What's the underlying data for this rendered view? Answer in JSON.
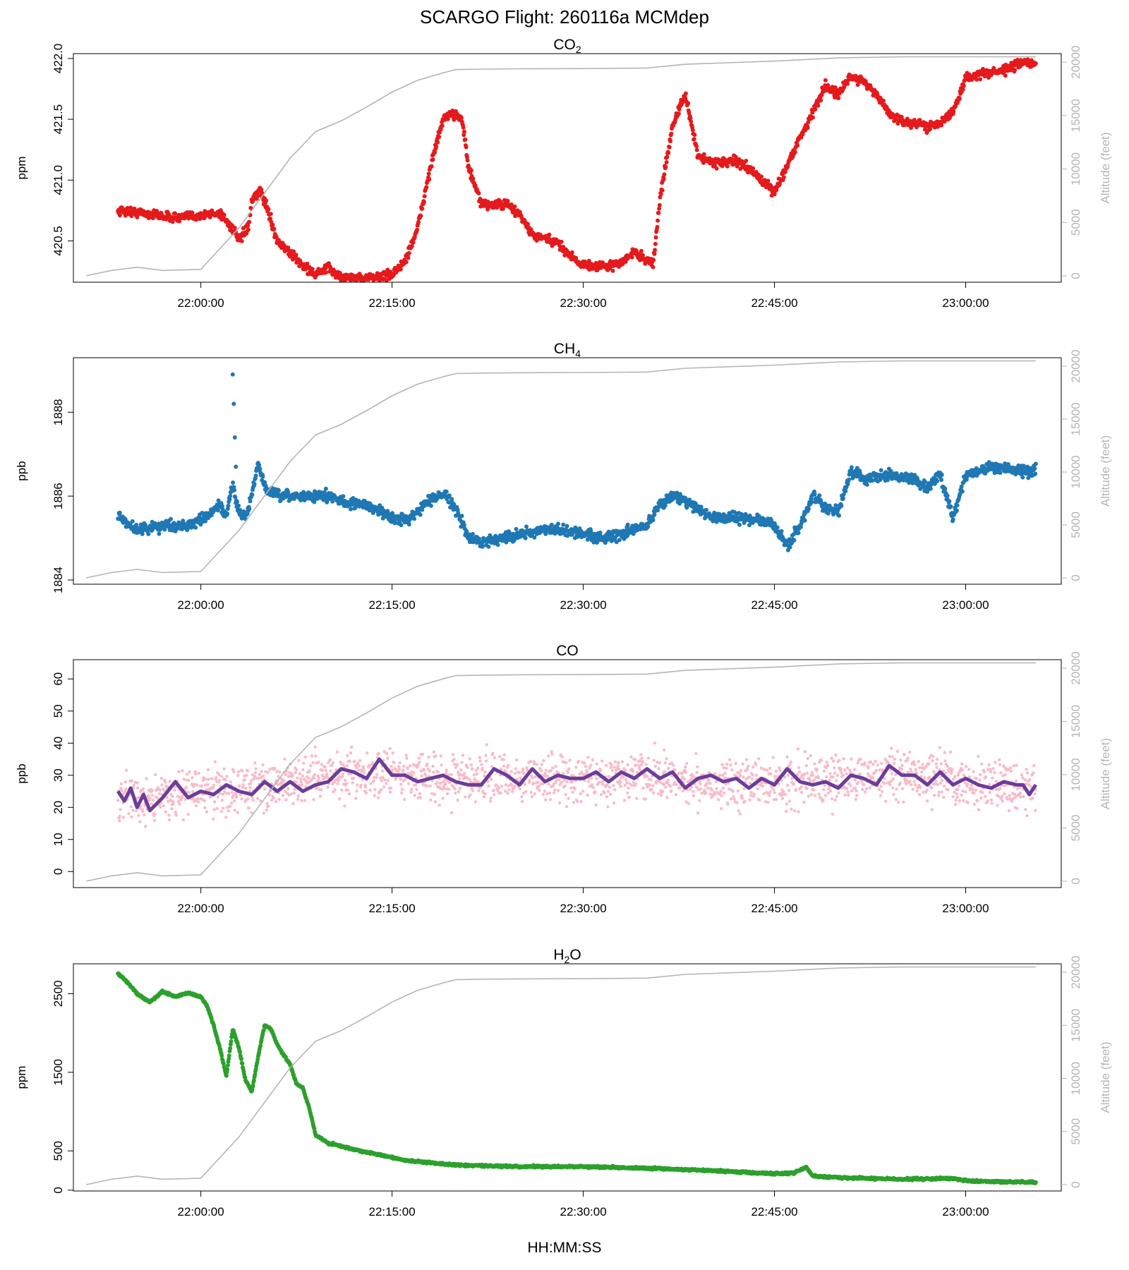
{
  "page_title": "SCARGO Flight: 260116a  MCMdep",
  "common_xlabel": "HH:MM:SS",
  "colors": {
    "altitude": "#b5b5b5",
    "axis": "#000000",
    "co2": "#e41a1c",
    "ch4": "#1f78b4",
    "co_raw": "#f8bcc8",
    "co_smooth": "#6a3d9a",
    "h2o": "#2ca02c"
  },
  "chart_data": [
    {
      "type": "scatter",
      "title": "CO2",
      "title_main": "CO",
      "title_sub": "2",
      "ylabel": "ppm",
      "ylabel2": "Altitude (feet)",
      "xlim": [
        "21:50:00",
        "23:07:30"
      ],
      "xticks": [
        "22:00:00",
        "22:15:00",
        "22:30:00",
        "22:45:00",
        "23:00:00"
      ],
      "ylim": [
        420.16,
        422.04
      ],
      "yticks": [
        "420.5",
        "421.0",
        "421.5",
        "422.0"
      ],
      "y2lim": [
        -600,
        20800
      ],
      "y2ticks": [
        "0",
        "5000",
        "10000",
        "15000",
        "20000"
      ],
      "series": [
        {
          "kind": "points",
          "color": "co2",
          "noise": 0.035,
          "x": [
            "21:53:30",
            "21:56:00",
            "21:58:00",
            "22:00:00",
            "22:01:30",
            "22:02:30",
            "22:03:00",
            "22:03:45",
            "22:04:00",
            "22:04:40",
            "22:05:10",
            "22:06:00",
            "22:08:00",
            "22:09:00",
            "22:10:00",
            "22:11:00",
            "22:13:00",
            "22:15:00",
            "22:16:00",
            "22:17:00",
            "22:18:00",
            "22:19:00",
            "22:20:00",
            "22:20:30",
            "22:21:00",
            "22:22:00",
            "22:24:00",
            "22:25:00",
            "22:26:00",
            "22:28:00",
            "22:29:00",
            "22:30:00",
            "22:32:00",
            "22:33:00",
            "22:34:00",
            "22:35:00",
            "22:35:30",
            "22:36:00",
            "22:37:00",
            "22:38:00",
            "22:39:00",
            "22:40:00",
            "22:42:00",
            "22:43:00",
            "22:44:00",
            "22:45:00",
            "22:46:00",
            "22:47:00",
            "22:48:00",
            "22:49:00",
            "22:50:00",
            "22:51:00",
            "22:52:00",
            "22:53:00",
            "22:54:00",
            "22:55:00",
            "22:56:00",
            "22:57:00",
            "22:58:00",
            "22:59:00",
            "23:00:00",
            "23:01:00",
            "23:03:00",
            "23:04:00",
            "23:05:00",
            "23:05:30"
          ],
          "y": [
            420.75,
            420.72,
            420.69,
            420.71,
            420.73,
            420.6,
            420.5,
            420.62,
            420.82,
            420.92,
            420.78,
            420.5,
            420.3,
            420.22,
            420.28,
            420.2,
            420.19,
            420.22,
            420.33,
            420.6,
            421.1,
            421.5,
            421.55,
            421.5,
            421.1,
            420.8,
            420.8,
            420.72,
            420.55,
            420.48,
            420.38,
            420.3,
            420.29,
            420.32,
            420.41,
            420.34,
            420.32,
            420.83,
            421.45,
            421.7,
            421.2,
            421.15,
            421.15,
            421.1,
            421.0,
            420.9,
            421.12,
            421.35,
            421.55,
            421.78,
            421.7,
            421.85,
            421.82,
            421.7,
            421.55,
            421.48,
            421.47,
            421.44,
            421.48,
            421.55,
            421.84,
            421.87,
            421.9,
            421.95,
            421.97,
            421.95
          ]
        },
        {
          "kind": "line",
          "color": "altitude",
          "axis": "right",
          "x": [
            "21:51:00",
            "21:53:00",
            "21:55:00",
            "21:57:00",
            "22:00:00",
            "22:03:00",
            "22:07:00",
            "22:09:00",
            "22:11:00",
            "22:13:00",
            "22:15:00",
            "22:17:00",
            "22:19:00",
            "22:20:00",
            "22:22:00",
            "22:25:00",
            "22:30:00",
            "22:35:00",
            "22:38:00",
            "22:45:00",
            "22:50:00",
            "22:55:00",
            "23:00:00",
            "23:05:30"
          ],
          "y": [
            0,
            500,
            800,
            500,
            600,
            4500,
            11000,
            13500,
            14500,
            15800,
            17200,
            18300,
            19000,
            19300,
            19350,
            19380,
            19400,
            19450,
            19800,
            20100,
            20400,
            20500,
            20500,
            20500
          ]
        }
      ]
    },
    {
      "type": "scatter",
      "title": "CH4",
      "title_main": "CH",
      "title_sub": "4",
      "ylabel": "ppb",
      "ylabel2": "Altitude (feet)",
      "xlim": [
        "21:50:00",
        "23:07:30"
      ],
      "xticks": [
        "22:00:00",
        "22:15:00",
        "22:30:00",
        "22:45:00",
        "23:00:00"
      ],
      "ylim": [
        1883.9,
        1889.3
      ],
      "yticks": [
        "1884",
        "1886",
        "1888"
      ],
      "y2lim": [
        -600,
        20800
      ],
      "y2ticks": [
        "0",
        "5000",
        "10000",
        "15000",
        "20000"
      ],
      "series": [
        {
          "kind": "points",
          "color": "ch4",
          "noise": 0.12,
          "x": [
            "21:53:30",
            "21:55:00",
            "21:57:00",
            "21:59:00",
            "22:00:30",
            "22:01:30",
            "22:02:00",
            "22:02:30",
            "22:03:00",
            "22:03:30",
            "22:04:00",
            "22:04:30",
            "22:05:00",
            "22:06:00",
            "22:08:00",
            "22:10:00",
            "22:12:00",
            "22:13:00",
            "22:15:00",
            "22:16:00",
            "22:18:00",
            "22:19:00",
            "22:20:00",
            "22:21:00",
            "22:22:00",
            "22:25:00",
            "22:28:00",
            "22:30:00",
            "22:32:00",
            "22:35:00",
            "22:36:00",
            "22:37:00",
            "22:38:00",
            "22:40:00",
            "22:42:00",
            "22:44:00",
            "22:45:00",
            "22:46:00",
            "22:47:00",
            "22:48:00",
            "22:49:00",
            "22:50:00",
            "22:51:00",
            "22:52:00",
            "22:54:00",
            "22:56:00",
            "22:57:00",
            "22:58:00",
            "22:59:00",
            "23:00:00",
            "23:02:00",
            "23:04:00",
            "23:05:30"
          ],
          "y": [
            1885.5,
            1885.2,
            1885.3,
            1885.3,
            1885.5,
            1885.8,
            1885.5,
            1886.3,
            1885.6,
            1885.5,
            1886.0,
            1886.8,
            1886.2,
            1886.0,
            1886.0,
            1886.0,
            1885.8,
            1885.8,
            1885.5,
            1885.4,
            1885.9,
            1886.1,
            1885.7,
            1885.0,
            1884.9,
            1885.1,
            1885.2,
            1885.1,
            1885.0,
            1885.3,
            1885.8,
            1886.0,
            1885.9,
            1885.5,
            1885.5,
            1885.4,
            1885.3,
            1884.8,
            1885.3,
            1886.0,
            1885.7,
            1885.6,
            1886.6,
            1886.4,
            1886.5,
            1886.4,
            1886.2,
            1886.5,
            1885.5,
            1886.5,
            1886.7,
            1886.6,
            1886.6
          ]
        },
        {
          "kind": "points",
          "color": "ch4",
          "noise": 0,
          "x": [
            "22:02:30",
            "22:02:35",
            "22:02:40",
            "22:02:45"
          ],
          "y": [
            1888.9,
            1888.2,
            1887.4,
            1886.7
          ]
        },
        {
          "kind": "line",
          "color": "altitude",
          "axis": "right",
          "x": [
            "21:51:00",
            "21:53:00",
            "21:55:00",
            "21:57:00",
            "22:00:00",
            "22:03:00",
            "22:07:00",
            "22:09:00",
            "22:11:00",
            "22:13:00",
            "22:15:00",
            "22:17:00",
            "22:19:00",
            "22:20:00",
            "22:22:00",
            "22:25:00",
            "22:30:00",
            "22:35:00",
            "22:38:00",
            "22:45:00",
            "22:50:00",
            "22:55:00",
            "23:00:00",
            "23:05:30"
          ],
          "y": [
            0,
            500,
            800,
            500,
            600,
            4500,
            11000,
            13500,
            14500,
            15800,
            17200,
            18300,
            19000,
            19300,
            19350,
            19380,
            19400,
            19450,
            19800,
            20100,
            20400,
            20500,
            20500,
            20500
          ]
        }
      ]
    },
    {
      "type": "scatter",
      "title": "CO",
      "title_main": "CO",
      "title_sub": "",
      "ylabel": "ppb",
      "ylabel2": "Altitude (feet)",
      "xlim": [
        "21:50:00",
        "23:07:30"
      ],
      "xticks": [
        "22:00:00",
        "22:15:00",
        "22:30:00",
        "22:45:00",
        "23:00:00"
      ],
      "ylim": [
        -5,
        66
      ],
      "yticks": [
        "0",
        "10",
        "20",
        "30",
        "40",
        "50",
        "60"
      ],
      "y2lim": [
        -600,
        20800
      ],
      "y2ticks": [
        "0",
        "5000",
        "10000",
        "15000",
        "20000"
      ],
      "series": [
        {
          "kind": "points",
          "color": "co_raw",
          "noise": 7,
          "x": [
            "21:53:30",
            "21:58:00",
            "22:03:00",
            "22:08:00",
            "22:12:00",
            "22:16:00",
            "22:20:00",
            "22:25:00",
            "22:30:00",
            "22:35:00",
            "22:40:00",
            "22:45:00",
            "22:50:00",
            "22:55:00",
            "23:00:00",
            "23:05:30"
          ],
          "y": [
            23,
            24,
            26,
            28,
            31,
            30,
            29,
            29,
            29,
            29,
            28,
            28,
            29,
            30,
            28,
            26
          ]
        },
        {
          "kind": "line",
          "color": "co_smooth",
          "x": [
            "21:53:30",
            "21:54:00",
            "21:54:30",
            "21:55:00",
            "21:55:30",
            "21:56:00",
            "21:57:00",
            "21:58:00",
            "21:59:00",
            "22:00:00",
            "22:01:00",
            "22:02:00",
            "22:03:00",
            "22:04:00",
            "22:05:00",
            "22:06:00",
            "22:07:00",
            "22:08:00",
            "22:09:00",
            "22:10:00",
            "22:11:00",
            "22:12:00",
            "22:13:00",
            "22:14:00",
            "22:15:00",
            "22:16:00",
            "22:17:00",
            "22:18:00",
            "22:19:00",
            "22:20:00",
            "22:21:00",
            "22:22:00",
            "22:23:00",
            "22:24:00",
            "22:25:00",
            "22:26:00",
            "22:27:00",
            "22:28:00",
            "22:29:00",
            "22:30:00",
            "22:31:00",
            "22:32:00",
            "22:33:00",
            "22:34:00",
            "22:35:00",
            "22:36:00",
            "22:37:00",
            "22:38:00",
            "22:39:00",
            "22:40:00",
            "22:41:00",
            "22:42:00",
            "22:43:00",
            "22:44:00",
            "22:45:00",
            "22:46:00",
            "22:47:00",
            "22:48:00",
            "22:49:00",
            "22:50:00",
            "22:51:00",
            "22:52:00",
            "22:53:00",
            "22:54:00",
            "22:55:00",
            "22:56:00",
            "22:57:00",
            "22:58:00",
            "22:59:00",
            "23:00:00",
            "23:01:00",
            "23:02:00",
            "23:03:00",
            "23:04:00",
            "23:04:30",
            "23:05:00",
            "23:05:30"
          ],
          "y": [
            25,
            22,
            26,
            20,
            24,
            19,
            23,
            28,
            23,
            25,
            24,
            27,
            25,
            24,
            28,
            25,
            28,
            25,
            27,
            28,
            32,
            31,
            29,
            35,
            30,
            30,
            28,
            29,
            30,
            28,
            27,
            27,
            32,
            30,
            27,
            32,
            28,
            30,
            29,
            29,
            31,
            28,
            31,
            29,
            32,
            29,
            31,
            26,
            29,
            30,
            28,
            29,
            26,
            29,
            27,
            32,
            28,
            27,
            28,
            26,
            30,
            29,
            27,
            33,
            30,
            30,
            27,
            31,
            27,
            29,
            27,
            26,
            28,
            27,
            27,
            24,
            27
          ]
        },
        {
          "kind": "line",
          "color": "altitude",
          "axis": "right",
          "x": [
            "21:51:00",
            "21:53:00",
            "21:55:00",
            "21:57:00",
            "22:00:00",
            "22:03:00",
            "22:07:00",
            "22:09:00",
            "22:11:00",
            "22:13:00",
            "22:15:00",
            "22:17:00",
            "22:19:00",
            "22:20:00",
            "22:22:00",
            "22:25:00",
            "22:30:00",
            "22:35:00",
            "22:38:00",
            "22:45:00",
            "22:50:00",
            "22:55:00",
            "23:00:00",
            "23:05:30"
          ],
          "y": [
            0,
            500,
            800,
            500,
            600,
            4500,
            11000,
            13500,
            14500,
            15800,
            17200,
            18300,
            19000,
            19300,
            19350,
            19380,
            19400,
            19450,
            19800,
            20100,
            20400,
            20500,
            20500,
            20500
          ]
        }
      ]
    },
    {
      "type": "scatter",
      "title": "H2O",
      "title_main": "H",
      "title_sub": "2",
      "title_tail": "O",
      "ylabel": "ppm",
      "ylabel2": "Altitude (feet)",
      "xlim": [
        "21:50:00",
        "23:07:30"
      ],
      "xticks": [
        "22:00:00",
        "22:15:00",
        "22:30:00",
        "22:45:00",
        "23:00:00"
      ],
      "ylim": [
        -10,
        2880
      ],
      "yticks": [
        "0",
        "500",
        "1500",
        "2500"
      ],
      "y2lim": [
        -600,
        20800
      ],
      "y2ticks": [
        "0",
        "5000",
        "10000",
        "15000",
        "20000"
      ],
      "series": [
        {
          "kind": "points",
          "color": "h2o",
          "noise": 12,
          "x": [
            "21:53:30",
            "21:54:00",
            "21:55:00",
            "21:56:00",
            "21:57:00",
            "21:58:00",
            "21:59:00",
            "22:00:00",
            "22:00:30",
            "22:01:00",
            "22:01:30",
            "22:02:00",
            "22:02:30",
            "22:03:00",
            "22:03:30",
            "22:04:00",
            "22:04:30",
            "22:05:00",
            "22:05:30",
            "22:06:00",
            "22:06:30",
            "22:07:00",
            "22:07:30",
            "22:08:00",
            "22:08:30",
            "22:09:00",
            "22:10:00",
            "22:12:00",
            "22:14:00",
            "22:16:00",
            "22:18:00",
            "22:20:00",
            "22:25:00",
            "22:30:00",
            "22:35:00",
            "22:40:00",
            "22:45:00",
            "22:46:30",
            "22:47:30",
            "22:48:00",
            "22:50:00",
            "22:55:00",
            "22:59:00",
            "23:00:00",
            "23:02:00",
            "23:05:30"
          ],
          "y": [
            2750,
            2690,
            2500,
            2390,
            2530,
            2460,
            2510,
            2460,
            2340,
            2100,
            1800,
            1450,
            2050,
            1800,
            1400,
            1250,
            1700,
            2100,
            2050,
            1850,
            1720,
            1600,
            1350,
            1300,
            1050,
            700,
            600,
            520,
            450,
            380,
            350,
            320,
            300,
            300,
            280,
            250,
            210,
            220,
            290,
            180,
            160,
            140,
            150,
            120,
            110,
            100
          ]
        },
        {
          "kind": "line",
          "color": "altitude",
          "axis": "right",
          "x": [
            "21:51:00",
            "21:53:00",
            "21:55:00",
            "21:57:00",
            "22:00:00",
            "22:03:00",
            "22:07:00",
            "22:09:00",
            "22:11:00",
            "22:13:00",
            "22:15:00",
            "22:17:00",
            "22:19:00",
            "22:20:00",
            "22:22:00",
            "22:25:00",
            "22:30:00",
            "22:35:00",
            "22:38:00",
            "22:45:00",
            "22:50:00",
            "22:55:00",
            "23:00:00",
            "23:05:30"
          ],
          "y": [
            0,
            500,
            800,
            500,
            600,
            4500,
            11000,
            13500,
            14500,
            15800,
            17200,
            18300,
            19000,
            19300,
            19350,
            19380,
            19400,
            19450,
            19800,
            20100,
            20400,
            20500,
            20500,
            20500
          ]
        }
      ]
    }
  ]
}
